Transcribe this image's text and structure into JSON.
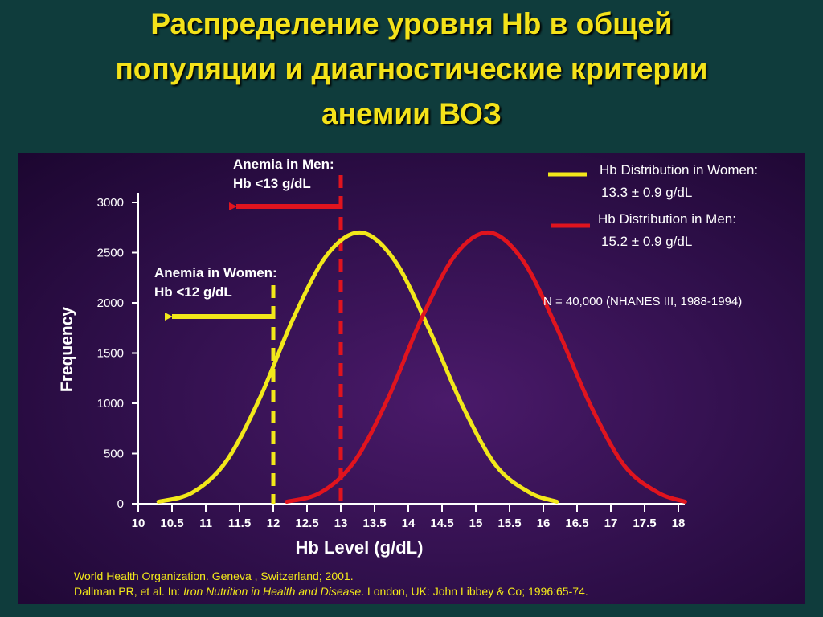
{
  "slide": {
    "title_lines": [
      "Распределение уровня Hb  в общей",
      "популяции и диагностические критерии",
      "анемии ВОЗ"
    ]
  },
  "annotations": {
    "men_threshold_line1": "Anemia in Men:",
    "men_threshold_line2": "Hb <13 g/dL",
    "women_threshold_line1": "Anemia in Women:",
    "women_threshold_line2": "Hb <12 g/dL",
    "sample_note": "N = 40,000 (NHANES III, 1988-1994)"
  },
  "legend": [
    {
      "line1": "Hb Distribution in Women:",
      "line2": "13.3 ± 0.9 g/dL",
      "color": "#f2e81a"
    },
    {
      "line1": "Hb Distribution in Men:",
      "line2": "15.2 ± 0.9 g/dL",
      "color": "#e0141e"
    }
  ],
  "sources": {
    "line1": "World Health Organization. Geneva , Switzerland; 2001.",
    "line2_prefix": "Dallman PR, et al. In: ",
    "line2_italic": "Iron Nutrition in Health and Disease",
    "line2_suffix": ". London, UK: John Libbey & Co; 1996:65-74."
  },
  "chart_data": {
    "type": "line",
    "title": "",
    "xlabel": "Hb Level (g/dL)",
    "ylabel": "Frequency",
    "xlim": [
      10,
      18
    ],
    "ylim": [
      0,
      3000
    ],
    "x_ticks": [
      "10",
      "10.5",
      "11",
      "11.5",
      "12",
      "12.5",
      "13",
      "13.5",
      "14",
      "14.5",
      "15",
      "15.5",
      "16",
      "16.5",
      "17",
      "17.5",
      "18"
    ],
    "y_ticks": [
      "0",
      "500",
      "1000",
      "1500",
      "2000",
      "2500",
      "3000"
    ],
    "series": [
      {
        "name": "Hb Distribution in Women",
        "color": "#f2e81a",
        "x": [
          10.3,
          10.8,
          11.3,
          11.8,
          12.3,
          12.8,
          13.3,
          13.8,
          14.3,
          14.8,
          15.3,
          15.8,
          16.2
        ],
        "y": [
          20,
          110,
          420,
          1050,
          1850,
          2480,
          2700,
          2420,
          1750,
          980,
          380,
          110,
          20
        ]
      },
      {
        "name": "Hb Distribution in Men",
        "color": "#e0141e",
        "x": [
          12.2,
          12.7,
          13.2,
          13.7,
          14.2,
          14.7,
          15.2,
          15.7,
          16.2,
          16.7,
          17.2,
          17.7,
          18.1
        ],
        "y": [
          20,
          110,
          420,
          1050,
          1850,
          2480,
          2700,
          2420,
          1750,
          980,
          380,
          110,
          20
        ]
      }
    ],
    "thresholds": [
      {
        "name": "Anemia in Women",
        "x": 12,
        "color": "#f2e81a"
      },
      {
        "name": "Anemia in Men",
        "x": 13,
        "color": "#e0141e"
      }
    ],
    "grid": false
  }
}
